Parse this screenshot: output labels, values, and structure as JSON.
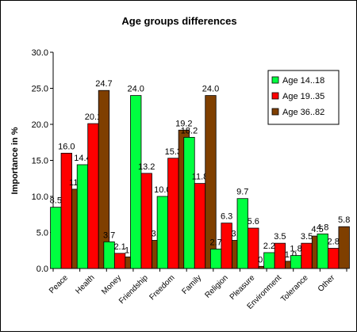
{
  "chart_data": {
    "type": "bar",
    "title": "Age groups differences",
    "xlabel": "",
    "ylabel": "Importance in %",
    "ylim": [
      0,
      30
    ],
    "yticks": [
      "0.0",
      "5.0",
      "10.0",
      "15.0",
      "20.0",
      "25.0",
      "30.0"
    ],
    "grid": false,
    "legend_position": "top-right",
    "categories": [
      "Peace",
      "Health",
      "Money",
      "Friendship",
      "Freedom",
      "Family",
      "Religion",
      "Pleasure",
      "Environment",
      "Tolerance",
      "Other"
    ],
    "series": [
      {
        "name": "Age 14..18",
        "color": "#00ff40",
        "values": [
          8.5,
          14.4,
          3.7,
          24.0,
          10.0,
          18.2,
          2.7,
          9.7,
          2.2,
          1.8,
          4.8
        ],
        "labels": [
          "8.5",
          "14.4",
          "3.7",
          "24.0",
          "10.0",
          "18.2",
          "2.7",
          "9.7",
          "2.2",
          "1.8",
          "4.8"
        ]
      },
      {
        "name": "Age 19..35",
        "color": "#ff0000",
        "values": [
          16.0,
          20.1,
          2.1,
          13.2,
          15.3,
          11.8,
          6.3,
          5.6,
          3.5,
          3.5,
          2.8
        ],
        "labels": [
          "16.0",
          "20.1",
          "2.1",
          "13.2",
          "15.3",
          "11.8",
          "6.3",
          "5.6",
          "3.5",
          "3.5",
          "2.8"
        ]
      },
      {
        "name": "Age 36..82",
        "color": "#7f3f00",
        "values": [
          11.0,
          24.7,
          1.6,
          3.9,
          19.2,
          24.0,
          3.9,
          0.3,
          1.0,
          4.5,
          5.8
        ],
        "labels": [
          "11.0",
          "24.7",
          "1.6",
          "3.9",
          "19.2",
          "24.0",
          "3.9",
          "0.3",
          "1.0",
          "4.5",
          "5.8"
        ]
      }
    ]
  }
}
